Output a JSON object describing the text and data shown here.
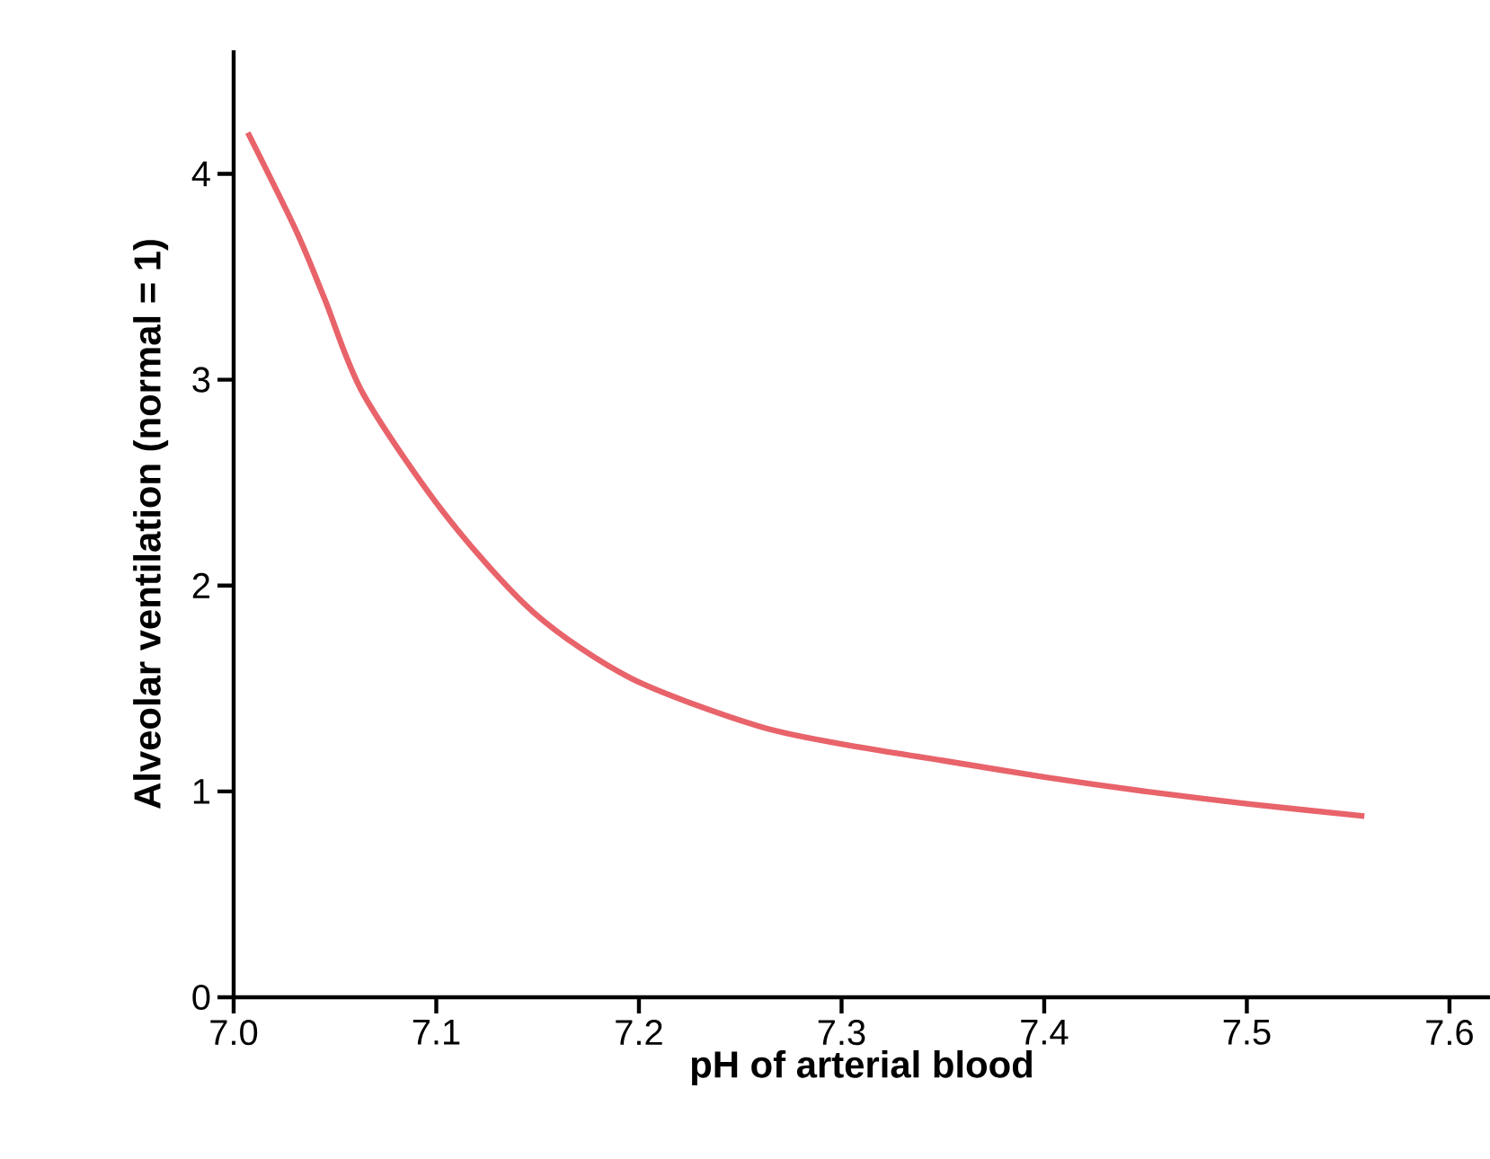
{
  "chart_data": {
    "type": "line",
    "xlabel": "pH of arterial blood",
    "ylabel": "Alveolar ventilation (normal = 1)",
    "x": [
      7.007,
      7.031,
      7.045,
      7.064,
      7.104,
      7.148,
      7.196,
      7.258,
      7.3,
      7.35,
      7.4,
      7.45,
      7.5,
      7.558
    ],
    "series": [
      {
        "color": "#e8636a",
        "values": [
          4.2,
          3.72,
          3.39,
          2.93,
          2.35,
          1.87,
          1.55,
          1.32,
          1.23,
          1.15,
          1.07,
          1.0,
          0.94,
          0.88
        ]
      }
    ],
    "xlim": [
      7.0,
      7.62
    ],
    "ylim": [
      0,
      4.6
    ],
    "xticks": [
      {
        "value": 7.0,
        "label": "7.0"
      },
      7.1,
      7.2,
      7.3,
      7.4,
      7.5,
      7.6
    ],
    "yticks": [
      0,
      1,
      2,
      3,
      4
    ],
    "marker": "none",
    "line_style": "solid"
  }
}
